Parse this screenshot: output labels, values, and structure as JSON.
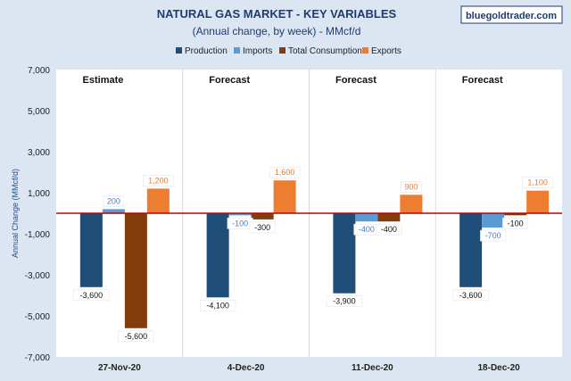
{
  "header": {
    "title": "NATURAL GAS MARKET - KEY VARIABLES",
    "subtitle": "(Annual change, by week) - MMcf/d",
    "brand": "bluegoldtrader.com"
  },
  "colors": {
    "background": "#dbe6f2",
    "plot": "#ffffff",
    "zero_line": "#c00000",
    "Production": "#1f4e79",
    "Imports": "#5b9bd5",
    "Total Consumption": "#843c0c",
    "Exports": "#ed7d31"
  },
  "chart_data": {
    "type": "bar",
    "categories": [
      "27-Nov-20",
      "4-Dec-20",
      "11-Dec-20",
      "18-Dec-20"
    ],
    "segment_labels": [
      "Estimate",
      "Forecast",
      "Forecast",
      "Forecast"
    ],
    "series": [
      {
        "name": "Production",
        "values": [
          -3600,
          -4100,
          -3900,
          -3600
        ]
      },
      {
        "name": "Imports",
        "values": [
          200,
          -100,
          -400,
          -700
        ]
      },
      {
        "name": "Total Consumption",
        "values": [
          -5600,
          -300,
          -400,
          -100
        ]
      },
      {
        "name": "Exports",
        "values": [
          1200,
          1600,
          900,
          1100
        ]
      }
    ],
    "ylabel": "Annual Change (MMcf/d)",
    "ylim": [
      -7000,
      7000
    ],
    "yticks": [
      7000,
      5000,
      3000,
      1000,
      -1000,
      -3000,
      -5000,
      -7000
    ],
    "ytick_labels": [
      "7,000",
      "5,000",
      "3,000",
      "1,000",
      "-1,000",
      "-3,000",
      "-5,000",
      "-7,000"
    ],
    "data_labels": [
      [
        "-3,600",
        "-4,100",
        "-3,900",
        "-3,600"
      ],
      [
        "200",
        "-100",
        "-400",
        "-700"
      ],
      [
        "-5,600",
        "-300",
        "-400",
        "-100"
      ],
      [
        "1,200",
        "1,600",
        "900",
        "1,100"
      ]
    ],
    "legend_position": "top",
    "grid": false
  }
}
